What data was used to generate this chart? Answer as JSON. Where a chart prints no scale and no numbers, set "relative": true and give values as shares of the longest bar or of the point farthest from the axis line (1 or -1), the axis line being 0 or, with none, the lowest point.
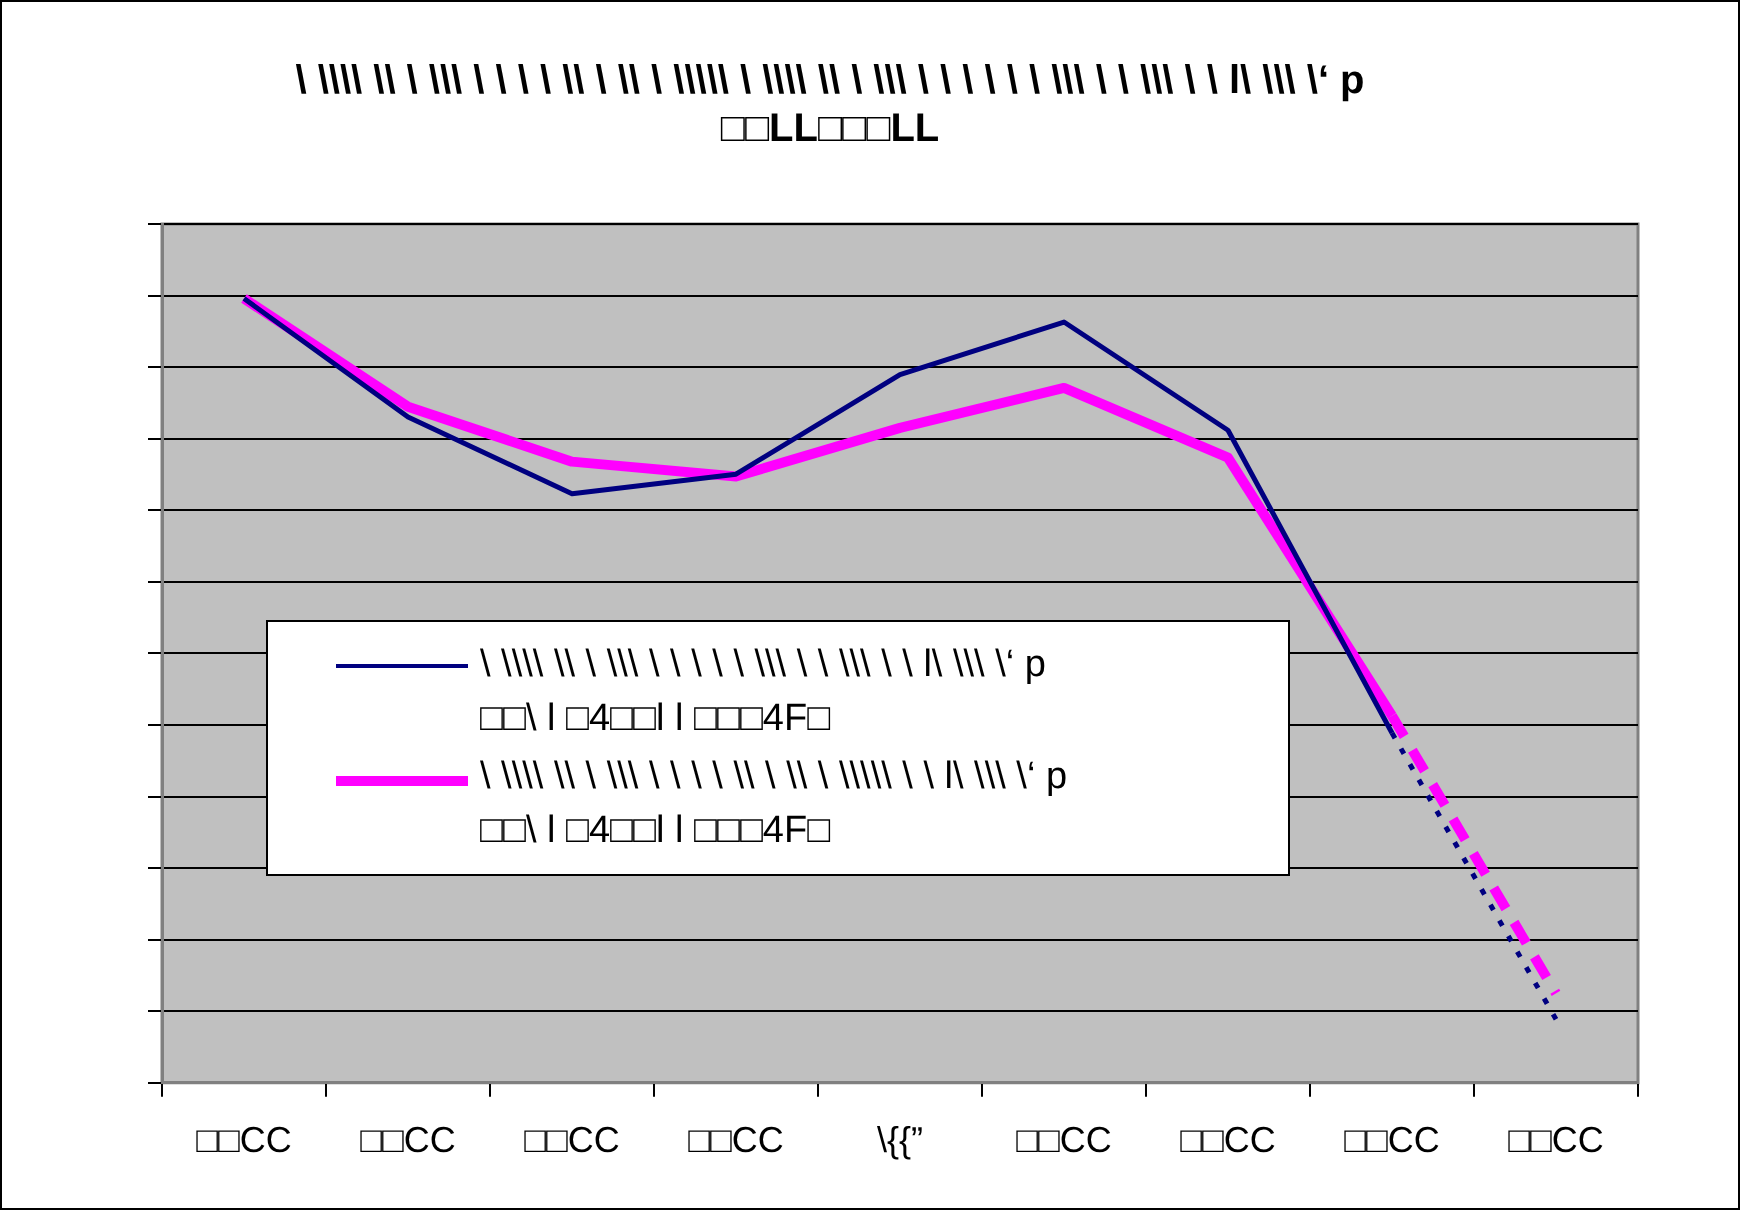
{
  "chart_data": {
    "type": "line",
    "title": "\\ \\\\\\\\ \\\\ \\ \\\\\\ \\ \\ \\ \\ \\\\ \\ \\\\ \\ \\\\\\\\\\ \\ \\\\\\\\ \\\\ \\ \\\\\\ \\ \\ \\ \\ \\ \\ \\\\\\ \\ \\ \\\\\\ \\ \\ l\\ \\\\\\ \\‘ p\n□□LL□□□LL",
    "relative": true,
    "grid": "y",
    "legend": "bottom left",
    "categories": [
      "□□CC",
      "□□CC",
      "□□CC",
      "□□CC",
      "\\{{”",
      "□□CC",
      "□□CC",
      "□□CC",
      "□□CC"
    ],
    "series": [
      {
        "name": "\\ \\\\\\\\ \\\\ \\ \\\\\\ \\ \\ \\ \\ \\ \\\\\\ \\ \\ \\\\\\ \\ \\ l\\ \\\\\\ \\‘ p\n□□\\ l □4□□l l □□□4F□",
        "color": "#000080",
        "line_style": "solid",
        "values": [
          1,
          0.849,
          0.751,
          0.776,
          0.903,
          0.97,
          0.832,
          0.446,
          null
        ]
      },
      {
        "name": "\\ \\\\\\\\ \\\\ \\ \\\\\\ \\ \\ \\ \\ \\\\ \\ \\\\ \\ \\\\\\\\\\ \\ \\ l\\ \\\\\\ \\‘ p\n□□\\ l □4□□l l □□□4F□",
        "color": "#ff00ff",
        "line_style": "solid",
        "values": [
          1,
          0.862,
          0.792,
          0.773,
          0.835,
          0.886,
          0.797,
          0.468,
          null
        ]
      },
      {
        "color": "#000080",
        "line_style": "dotted",
        "values": [
          null,
          null,
          null,
          null,
          null,
          null,
          null,
          0.446,
          0.081
        ]
      },
      {
        "color": "#ff00ff",
        "line_style": "dashed",
        "values": [
          null,
          null,
          null,
          null,
          null,
          null,
          null,
          0.468,
          0.114
        ]
      }
    ]
  }
}
